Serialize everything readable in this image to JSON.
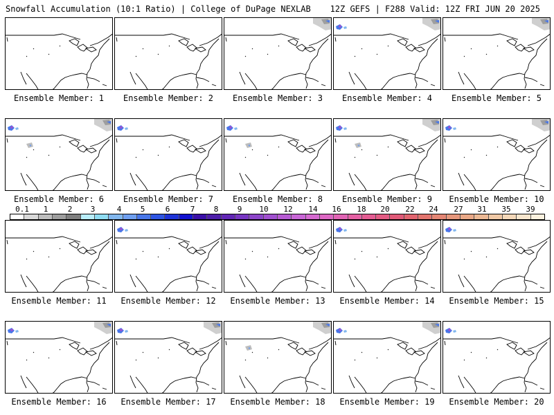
{
  "header": {
    "left": "Snowfall Accumulation (10:1 Ratio) | College of DuPage NEXLAB",
    "right": "12Z GEFS | F288 Valid: 12Z FRI JUN 20 2025"
  },
  "legend": {
    "ticks": [
      "0.1",
      "1",
      "2",
      "3",
      "4",
      "5",
      "6",
      "7",
      "8",
      "9",
      "10",
      "12",
      "14",
      "16",
      "18",
      "20",
      "22",
      "24",
      "27",
      "31",
      "35",
      "39"
    ],
    "colors": [
      "#ffffff",
      "#d9d9d9",
      "#bdbdbd",
      "#9e9e9e",
      "#7f7f7f",
      "#b9eefb",
      "#8fdcf2",
      "#82b7ee",
      "#6f9ff0",
      "#4876e8",
      "#2e55e3",
      "#1f34d8",
      "#1212cf",
      "#3a0fa8",
      "#4d1eaa",
      "#6226b6",
      "#7736c2",
      "#8c45c9",
      "#a050cf",
      "#b75bd3",
      "#c866d6",
      "#d56ad0",
      "#dc67c3",
      "#e064b4",
      "#e460a3",
      "#e45c92",
      "#e25b83",
      "#e05a78",
      "#e1646f",
      "#e2746e",
      "#e48674",
      "#e6977c",
      "#e9a887",
      "#ecb995",
      "#f0c9a6",
      "#f4d8b9",
      "#f8e6cd",
      "#fbf1df"
    ]
  },
  "members": [
    {
      "label": "Ensemble Member: 1",
      "snow": []
    },
    {
      "label": "Ensemble Member: 2",
      "snow": []
    },
    {
      "label": "Ensemble Member: 3",
      "snow": [
        "northeast-canada"
      ]
    },
    {
      "label": "Ensemble Member: 4",
      "snow": [
        "northwest",
        "northeast-canada"
      ]
    },
    {
      "label": "Ensemble Member: 5",
      "snow": [
        "northeast-canada"
      ]
    },
    {
      "label": "Ensemble Member: 6",
      "snow": [
        "northwest",
        "rockies",
        "northeast-canada"
      ]
    },
    {
      "label": "Ensemble Member: 7",
      "snow": [
        "northwest"
      ]
    },
    {
      "label": "Ensemble Member: 8",
      "snow": [
        "northwest",
        "rockies"
      ]
    },
    {
      "label": "Ensemble Member: 9",
      "snow": [
        "northwest",
        "rockies",
        "northeast-canada"
      ]
    },
    {
      "label": "Ensemble Member: 10",
      "snow": [
        "northwest",
        "northeast-canada"
      ]
    },
    {
      "label": "Ensemble Member: 11",
      "snow": []
    },
    {
      "label": "Ensemble Member: 12",
      "snow": [
        "northwest"
      ]
    },
    {
      "label": "Ensemble Member: 13",
      "snow": []
    },
    {
      "label": "Ensemble Member: 14",
      "snow": [
        "northwest"
      ]
    },
    {
      "label": "Ensemble Member: 15",
      "snow": [
        "northwest"
      ]
    },
    {
      "label": "Ensemble Member: 16",
      "snow": [
        "northwest",
        "northeast-canada"
      ]
    },
    {
      "label": "Ensemble Member: 17",
      "snow": [
        "northwest",
        "northeast-canada"
      ]
    },
    {
      "label": "Ensemble Member: 18",
      "snow": [
        "rockies",
        "northeast-canada"
      ]
    },
    {
      "label": "Ensemble Member: 19",
      "snow": [
        "northwest",
        "northeast-canada"
      ]
    },
    {
      "label": "Ensemble Member: 20",
      "snow": [
        "northwest"
      ]
    }
  ]
}
